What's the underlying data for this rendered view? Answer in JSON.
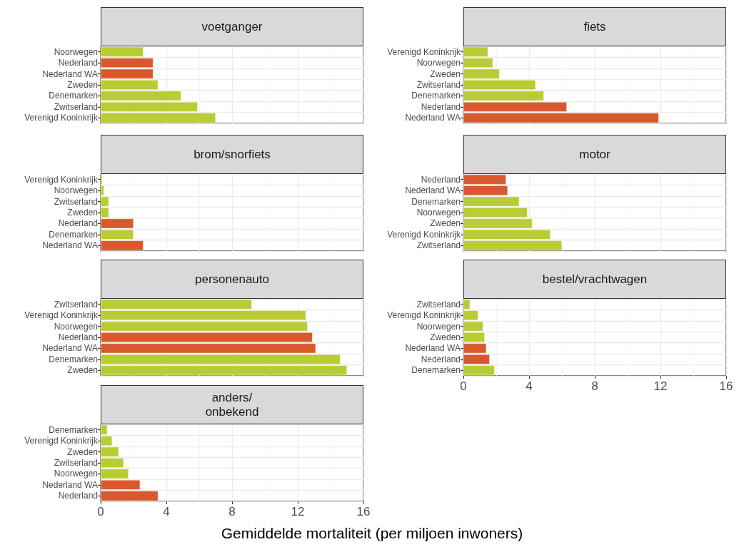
{
  "chart_data": [
    {
      "type": "bar",
      "orientation": "horizontal",
      "title": "voetganger",
      "categories": [
        "Noorwegen",
        "Nederland",
        "Nederland WA",
        "Zweden",
        "Denemarken",
        "Zwitserland",
        "Verenigd Koninkrijk"
      ],
      "values": [
        2.6,
        3.2,
        3.2,
        3.5,
        4.9,
        5.9,
        7.0
      ],
      "colors": [
        "#b9cc33",
        "#da582d",
        "#da582d",
        "#b9cc33",
        "#b9cc33",
        "#b9cc33",
        "#b9cc33"
      ],
      "xlim": [
        0,
        16
      ],
      "xticks": [
        0,
        4,
        8,
        12,
        16
      ],
      "grid": true,
      "tick_labels": "y"
    },
    {
      "type": "bar",
      "orientation": "horizontal",
      "title": "fiets",
      "categories": [
        "Verenigd Koninkrijk",
        "Noorwegen",
        "Zweden",
        "Zwitserland",
        "Denemarken",
        "Nederland",
        "Nederland WA"
      ],
      "values": [
        1.5,
        1.8,
        2.2,
        4.4,
        4.9,
        6.3,
        11.9
      ],
      "colors": [
        "#b9cc33",
        "#b9cc33",
        "#b9cc33",
        "#b9cc33",
        "#b9cc33",
        "#da582d",
        "#da582d"
      ],
      "xlim": [
        0,
        16
      ],
      "xticks": [
        0,
        4,
        8,
        12,
        16
      ],
      "grid": true,
      "tick_labels": "y"
    },
    {
      "type": "bar",
      "orientation": "horizontal",
      "title": "brom/snorfiets",
      "categories": [
        "Verenigd Koninkrijk",
        "Noorwegen",
        "Zwitserland",
        "Zweden",
        "Nederland",
        "Denemarken",
        "Nederland WA"
      ],
      "values": [
        0.1,
        0.2,
        0.5,
        0.5,
        2.0,
        2.0,
        2.6
      ],
      "colors": [
        "#b9cc33",
        "#b9cc33",
        "#b9cc33",
        "#b9cc33",
        "#da582d",
        "#b9cc33",
        "#da582d"
      ],
      "xlim": [
        0,
        16
      ],
      "xticks": [
        0,
        4,
        8,
        12,
        16
      ],
      "grid": true,
      "tick_labels": "y"
    },
    {
      "type": "bar",
      "orientation": "horizontal",
      "title": "motor",
      "categories": [
        "Nederland",
        "Nederland WA",
        "Denemarken",
        "Noorwegen",
        "Zweden",
        "Verenigd Koninkrijk",
        "Zwitserland"
      ],
      "values": [
        2.6,
        2.7,
        3.4,
        3.9,
        4.2,
        5.3,
        6.0
      ],
      "colors": [
        "#da582d",
        "#da582d",
        "#b9cc33",
        "#b9cc33",
        "#b9cc33",
        "#b9cc33",
        "#b9cc33"
      ],
      "xlim": [
        0,
        16
      ],
      "xticks": [
        0,
        4,
        8,
        12,
        16
      ],
      "grid": true,
      "tick_labels": "y"
    },
    {
      "type": "bar",
      "orientation": "horizontal",
      "title": "personenauto",
      "categories": [
        "Zwitserland",
        "Verenigd Koninkrijk",
        "Noorwegen",
        "Nederland",
        "Nederland WA",
        "Denemarken",
        "Zweden"
      ],
      "values": [
        9.2,
        12.5,
        12.6,
        12.9,
        13.1,
        14.6,
        15.0
      ],
      "colors": [
        "#b9cc33",
        "#b9cc33",
        "#b9cc33",
        "#da582d",
        "#da582d",
        "#b9cc33",
        "#b9cc33"
      ],
      "xlim": [
        0,
        16
      ],
      "xticks": [
        0,
        4,
        8,
        12,
        16
      ],
      "grid": true,
      "tick_labels": "y"
    },
    {
      "type": "bar",
      "orientation": "horizontal",
      "title": "bestel/vrachtwagen",
      "categories": [
        "Zwitserland",
        "Verenigd Koninkrijk",
        "Noorwegen",
        "Zweden",
        "Nederland WA",
        "Nederland",
        "Denemarken"
      ],
      "values": [
        0.4,
        0.9,
        1.2,
        1.3,
        1.4,
        1.6,
        1.9
      ],
      "colors": [
        "#b9cc33",
        "#b9cc33",
        "#b9cc33",
        "#b9cc33",
        "#da582d",
        "#da582d",
        "#b9cc33"
      ],
      "xlim": [
        0,
        16
      ],
      "xticks": [
        0,
        4,
        8,
        12,
        16
      ],
      "grid": true
    },
    {
      "type": "bar",
      "orientation": "horizontal",
      "title": "anders/\nonbekend",
      "xlabel": "Gemiddelde mortaliteit (per miljoen inwoners)",
      "categories": [
        "Denemarken",
        "Verenigd Koninkrijk",
        "Zweden",
        "Zwitserland",
        "Noorwegen",
        "Nederland WA",
        "Nederland"
      ],
      "values": [
        0.4,
        0.7,
        1.1,
        1.4,
        1.7,
        2.4,
        3.5
      ],
      "colors": [
        "#b9cc33",
        "#b9cc33",
        "#b9cc33",
        "#b9cc33",
        "#b9cc33",
        "#da582d",
        "#da582d"
      ],
      "xlim": [
        0,
        16
      ],
      "xticks": [
        0,
        4,
        8,
        12,
        16
      ],
      "grid": true
    }
  ]
}
